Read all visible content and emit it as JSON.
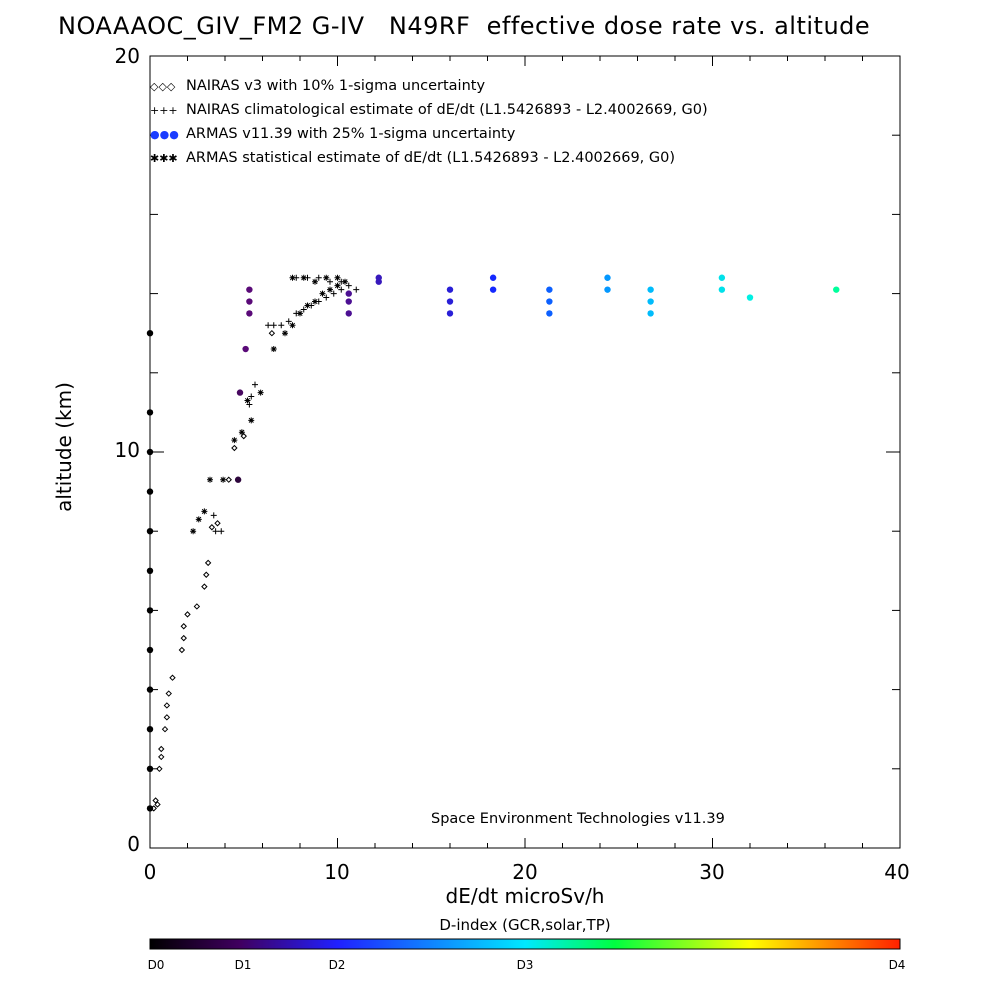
{
  "chart_data": {
    "type": "scatter",
    "title": "NOAAAOC_GIV_FM2 G-IV   N49RF  effective dose rate vs. altitude",
    "xlabel": "dE/dt microSv/h",
    "ylabel": "altitude (km)",
    "xlim": [
      0,
      40
    ],
    "ylim": [
      0,
      20
    ],
    "x_ticks": [
      "0",
      "10",
      "20",
      "30",
      "40"
    ],
    "y_ticks": [
      "0",
      "10",
      "20"
    ],
    "legend": [
      {
        "symbol": "◇◇◇",
        "label": "NAIRAS v3 with 10% 1-sigma uncertainty"
      },
      {
        "symbol": "+++",
        "label": "NAIRAS climatological estimate of dE/dt (L1.5426893 - L2.4002669, G0)"
      },
      {
        "symbol": "●●●",
        "label": "ARMAS v11.39 with 25% 1-sigma uncertainty"
      },
      {
        "symbol": "✱✱✱",
        "label": "ARMAS statistical estimate of dE/dt (L1.5426893 - L2.4002669, G0)"
      }
    ],
    "legend_position": "top-left",
    "annotation": "Space Environment Technologies v11.39",
    "colorbar": {
      "title": "D-index (GCR,solar,TP)",
      "ticks": [
        {
          "label": "D0",
          "value": 0
        },
        {
          "label": "D1",
          "value": 1
        },
        {
          "label": "D2",
          "value": 2
        },
        {
          "label": "D3",
          "value": 4
        },
        {
          "label": "D4",
          "value": 8
        }
      ],
      "colors": [
        "#000000",
        "#5a0a7a",
        "#1010ff",
        "#00c8ff",
        "#00ff40",
        "#ffff00",
        "#ff2000"
      ]
    },
    "series": [
      {
        "name": "NAIRAS v3 with 10% 1-sigma uncertainty",
        "marker": "diamond",
        "points": [
          [
            0.3,
            1.2
          ],
          [
            0.2,
            1.0
          ],
          [
            0.4,
            1.1
          ],
          [
            0.5,
            2.0
          ],
          [
            0.6,
            2.3
          ],
          [
            0.6,
            2.5
          ],
          [
            0.8,
            3.0
          ],
          [
            0.9,
            3.3
          ],
          [
            0.9,
            3.6
          ],
          [
            1.0,
            3.9
          ],
          [
            1.2,
            4.3
          ],
          [
            1.7,
            5.0
          ],
          [
            1.8,
            5.3
          ],
          [
            1.8,
            5.6
          ],
          [
            2.0,
            5.9
          ],
          [
            2.5,
            6.1
          ],
          [
            2.9,
            6.6
          ],
          [
            3.0,
            6.9
          ],
          [
            3.1,
            7.2
          ],
          [
            3.3,
            8.1
          ],
          [
            3.6,
            8.2
          ],
          [
            4.2,
            9.3
          ],
          [
            4.5,
            10.1
          ],
          [
            5.0,
            10.4
          ],
          [
            6.5,
            13.0
          ]
        ]
      },
      {
        "name": "NAIRAS climatological estimate of dE/dt (L1.5426893 - L2.4002669, G0)",
        "marker": "plus",
        "points": [
          [
            3.5,
            8.0
          ],
          [
            3.8,
            8.0
          ],
          [
            3.4,
            8.4
          ],
          [
            5.3,
            11.2
          ],
          [
            5.4,
            11.4
          ],
          [
            5.6,
            11.7
          ],
          [
            6.3,
            13.2
          ],
          [
            6.6,
            13.2
          ],
          [
            7.0,
            13.2
          ],
          [
            7.4,
            13.3
          ],
          [
            7.8,
            13.5
          ],
          [
            8.2,
            13.6
          ],
          [
            8.6,
            13.7
          ],
          [
            9.0,
            13.8
          ],
          [
            9.4,
            13.9
          ],
          [
            9.8,
            14.0
          ],
          [
            10.2,
            14.1
          ],
          [
            10.6,
            14.2
          ],
          [
            11.0,
            14.1
          ],
          [
            7.8,
            14.4
          ],
          [
            8.4,
            14.4
          ],
          [
            9.0,
            14.4
          ],
          [
            9.6,
            14.3
          ],
          [
            10.2,
            14.3
          ]
        ]
      },
      {
        "name": "ARMAS v11.39 with 25% 1-sigma uncertainty",
        "marker": "dot",
        "points": [
          {
            "x": 0.0,
            "y": 1.0,
            "d": 0
          },
          {
            "x": 0.0,
            "y": 2.0,
            "d": 0
          },
          {
            "x": 0.0,
            "y": 3.0,
            "d": 0
          },
          {
            "x": 0.0,
            "y": 4.0,
            "d": 0
          },
          {
            "x": 0.0,
            "y": 5.0,
            "d": 0
          },
          {
            "x": 0.0,
            "y": 6.0,
            "d": 0
          },
          {
            "x": 0.0,
            "y": 7.0,
            "d": 0
          },
          {
            "x": 0.0,
            "y": 8.0,
            "d": 0
          },
          {
            "x": 0.0,
            "y": 9.0,
            "d": 0
          },
          {
            "x": 0.0,
            "y": 10.0,
            "d": 0
          },
          {
            "x": 0.0,
            "y": 11.0,
            "d": 0
          },
          {
            "x": 0.0,
            "y": 13.0,
            "d": 0
          },
          {
            "x": 4.7,
            "y": 9.3,
            "d": 0.5
          },
          {
            "x": 4.8,
            "y": 11.5,
            "d": 0.8
          },
          {
            "x": 5.1,
            "y": 12.6,
            "d": 1.0
          },
          {
            "x": 5.3,
            "y": 13.5,
            "d": 1.0
          },
          {
            "x": 5.3,
            "y": 13.8,
            "d": 1.0
          },
          {
            "x": 5.3,
            "y": 14.1,
            "d": 1.0
          },
          {
            "x": 10.6,
            "y": 13.5,
            "d": 1.2
          },
          {
            "x": 10.6,
            "y": 13.8,
            "d": 1.2
          },
          {
            "x": 10.6,
            "y": 14.0,
            "d": 1.2
          },
          {
            "x": 12.2,
            "y": 14.3,
            "d": 1.5
          },
          {
            "x": 12.2,
            "y": 14.4,
            "d": 1.5
          },
          {
            "x": 16.0,
            "y": 13.5,
            "d": 1.7
          },
          {
            "x": 16.0,
            "y": 13.8,
            "d": 1.7
          },
          {
            "x": 16.0,
            "y": 14.1,
            "d": 1.7
          },
          {
            "x": 18.3,
            "y": 14.1,
            "d": 2.0
          },
          {
            "x": 18.3,
            "y": 14.4,
            "d": 2.0
          },
          {
            "x": 21.3,
            "y": 13.5,
            "d": 2.4
          },
          {
            "x": 21.3,
            "y": 13.8,
            "d": 2.4
          },
          {
            "x": 21.3,
            "y": 14.1,
            "d": 2.4
          },
          {
            "x": 24.4,
            "y": 14.1,
            "d": 2.8
          },
          {
            "x": 24.4,
            "y": 14.4,
            "d": 2.8
          },
          {
            "x": 26.7,
            "y": 13.5,
            "d": 3.1
          },
          {
            "x": 26.7,
            "y": 13.8,
            "d": 3.1
          },
          {
            "x": 26.7,
            "y": 14.1,
            "d": 3.1
          },
          {
            "x": 30.5,
            "y": 14.1,
            "d": 3.6
          },
          {
            "x": 30.5,
            "y": 14.4,
            "d": 3.6
          },
          {
            "x": 32.0,
            "y": 13.9,
            "d": 3.8
          },
          {
            "x": 36.6,
            "y": 14.1,
            "d": 4.4
          }
        ]
      },
      {
        "name": "ARMAS statistical estimate of dE/dt (L1.5426893 - L2.4002669, G0)",
        "marker": "asterisk",
        "points": [
          [
            2.3,
            8.0
          ],
          [
            2.6,
            8.3
          ],
          [
            2.9,
            8.5
          ],
          [
            3.2,
            9.3
          ],
          [
            3.9,
            9.3
          ],
          [
            4.5,
            10.3
          ],
          [
            4.9,
            10.5
          ],
          [
            5.4,
            10.8
          ],
          [
            5.2,
            11.3
          ],
          [
            5.9,
            11.5
          ],
          [
            6.6,
            12.6
          ],
          [
            7.2,
            13.0
          ],
          [
            7.6,
            13.2
          ],
          [
            8.0,
            13.5
          ],
          [
            8.4,
            13.7
          ],
          [
            8.8,
            13.8
          ],
          [
            9.2,
            14.0
          ],
          [
            9.6,
            14.1
          ],
          [
            10.0,
            14.2
          ],
          [
            10.4,
            14.3
          ],
          [
            7.6,
            14.4
          ],
          [
            8.2,
            14.4
          ],
          [
            8.8,
            14.3
          ],
          [
            9.4,
            14.4
          ],
          [
            10.0,
            14.4
          ]
        ]
      }
    ]
  }
}
